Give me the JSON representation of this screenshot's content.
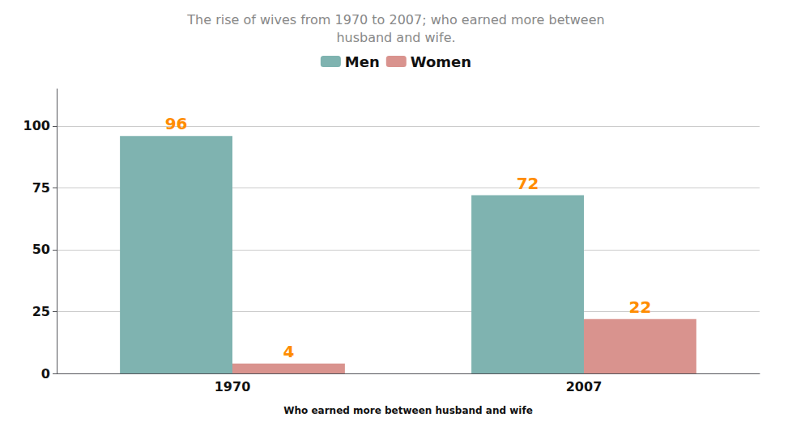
{
  "chart_data": {
    "type": "bar",
    "title": "The rise of wives from 1970 to 2007; who earned more between\nhusband and wife.",
    "xlabel": "Who earned more between husband and wife",
    "categories": [
      "1970",
      "2007"
    ],
    "series": [
      {
        "name": "Men",
        "color": "#7fb3b0",
        "values": [
          96,
          72
        ]
      },
      {
        "name": "Women",
        "color": "#d9938e",
        "values": [
          4,
          22
        ]
      }
    ],
    "ylim": [
      0,
      115
    ],
    "yticks": [
      0,
      25,
      50,
      75,
      100
    ],
    "grid": true,
    "legend": "top",
    "data_labels": true
  }
}
